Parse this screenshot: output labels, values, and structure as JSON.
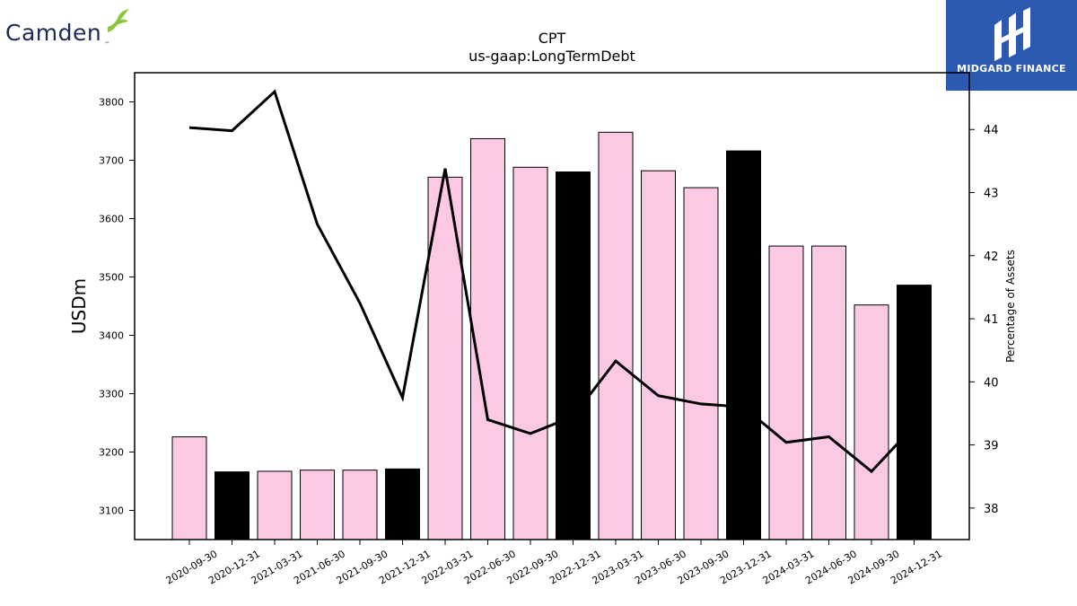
{
  "logos": {
    "left_text": "Camden",
    "right_text": "MIDGARD FINANCE"
  },
  "colors": {
    "bar_default": "#fcc9e4",
    "bar_highlight": "#000000",
    "line": "#000000",
    "logo_left_text": "#1e2a55",
    "logo_left_bird": "#8cc63f",
    "logo_right_bg": "#2c5ab0"
  },
  "chart_data": {
    "type": "bar",
    "title": "CPT",
    "subtitle": "us-gaap:LongTermDebt",
    "ylabel": "USDm",
    "y2label": "Percentage of Assets",
    "ylim": [
      3050,
      3850
    ],
    "y2lim": [
      37.5,
      44.9
    ],
    "yticks": [
      3100,
      3200,
      3300,
      3400,
      3500,
      3600,
      3700,
      3800
    ],
    "y2ticks": [
      38,
      39,
      40,
      41,
      42,
      43,
      44
    ],
    "categories": [
      "2020-09-30",
      "2020-12-31",
      "2021-03-31",
      "2021-06-30",
      "2021-09-30",
      "2021-12-31",
      "2022-03-31",
      "2022-06-30",
      "2022-09-30",
      "2022-12-31",
      "2023-03-31",
      "2023-06-30",
      "2023-09-30",
      "2023-12-31",
      "2024-03-31",
      "2024-06-30",
      "2024-09-30",
      "2024-12-31"
    ],
    "series": [
      {
        "type": "bar",
        "axis": "left",
        "values": [
          3226,
          3166,
          3167,
          3169,
          3169,
          3171,
          3671,
          3737,
          3688,
          3680,
          3748,
          3682,
          3653,
          3716,
          3553,
          3553,
          3452,
          3486
        ],
        "highlight": [
          false,
          true,
          false,
          false,
          false,
          true,
          false,
          false,
          false,
          true,
          false,
          false,
          false,
          true,
          false,
          false,
          false,
          true
        ]
      },
      {
        "type": "line",
        "axis": "right",
        "values": [
          44.03,
          43.98,
          44.6,
          42.5,
          41.25,
          39.75,
          43.38,
          39.4,
          39.18,
          39.45,
          40.33,
          39.78,
          39.65,
          39.6,
          39.04,
          39.13,
          38.58,
          39.3
        ]
      }
    ],
    "grid": false,
    "legend": "none"
  }
}
